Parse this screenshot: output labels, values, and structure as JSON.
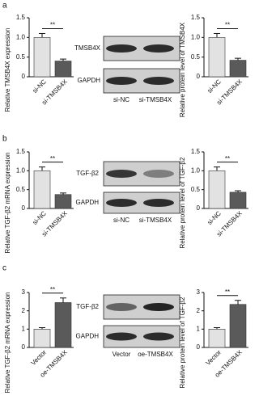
{
  "panels": [
    "a",
    "b",
    "c"
  ],
  "blots": [
    {
      "rows": [
        "TMSB4X",
        "GAPDH"
      ],
      "lanes": [
        "si-NC",
        "si-TMSB4X"
      ]
    },
    {
      "rows": [
        "TGF-β2",
        "GAPDH"
      ],
      "lanes": [
        "si-NC",
        "si-TMSB4X"
      ]
    },
    {
      "rows": [
        "TGF-β2",
        "GAPDH"
      ],
      "lanes": [
        "Vector",
        "oe-TMSB4X"
      ]
    }
  ],
  "chart_data": [
    {
      "type": "bar",
      "ylabel": "Relative TMSB4X expression",
      "categories": [
        "si-NC",
        "si-TMSB4X"
      ],
      "values": [
        1.0,
        0.4
      ],
      "errors": [
        0.1,
        0.05
      ],
      "colors": [
        "#e2e2e2",
        "#5a5a5a"
      ],
      "annotation": "**",
      "ylim": [
        0,
        1.5
      ],
      "yticks": [
        0,
        0.5,
        {
          "value": 1,
          "label": "1.0"
        },
        1.5
      ]
    },
    {
      "type": "bar",
      "ylabel": "Relative protein level of TMSB4X",
      "categories": [
        "si-NC",
        "si-TMSB4X"
      ],
      "values": [
        1.0,
        0.42
      ],
      "errors": [
        0.1,
        0.05
      ],
      "colors": [
        "#e2e2e2",
        "#5a5a5a"
      ],
      "annotation": "**",
      "ylim": [
        0,
        1.5
      ],
      "yticks": [
        0,
        0.5,
        {
          "value": 1,
          "label": "1.0"
        },
        1.5
      ]
    },
    {
      "type": "bar",
      "ylabel": "Relative TGF-β2 mRNA expression",
      "categories": [
        "si-NC",
        "si-TMSB4X"
      ],
      "values": [
        1.0,
        0.37
      ],
      "errors": [
        0.1,
        0.04
      ],
      "colors": [
        "#e2e2e2",
        "#5a5a5a"
      ],
      "annotation": "**",
      "ylim": [
        0,
        1.5
      ],
      "yticks": [
        0,
        0.5,
        {
          "value": 1,
          "label": "1.0"
        },
        1.5
      ]
    },
    {
      "type": "bar",
      "ylabel": "Relative protein level of TGF-β2",
      "categories": [
        "si-NC",
        "si-TMSB4X"
      ],
      "values": [
        1.0,
        0.43
      ],
      "errors": [
        0.1,
        0.04
      ],
      "colors": [
        "#e2e2e2",
        "#5a5a5a"
      ],
      "annotation": "**",
      "ylim": [
        0,
        1.5
      ],
      "yticks": [
        0,
        0.5,
        {
          "value": 1,
          "label": "1.0"
        },
        1.5
      ]
    },
    {
      "type": "bar",
      "ylabel": "Relative TGF-β2 mRNA expression",
      "categories": [
        "Vector",
        "oe-TMSB4X"
      ],
      "values": [
        1.0,
        2.45
      ],
      "errors": [
        0.08,
        0.25
      ],
      "colors": [
        "#e2e2e2",
        "#5a5a5a"
      ],
      "annotation": "**",
      "ylim": [
        0,
        3
      ],
      "yticks": [
        0,
        1,
        2,
        3
      ]
    },
    {
      "type": "bar",
      "ylabel": "Relative protein level of TGF-β2",
      "categories": [
        "Vector",
        "oe-TMSB4X"
      ],
      "values": [
        1.0,
        2.35
      ],
      "errors": [
        0.08,
        0.22
      ],
      "colors": [
        "#e2e2e2",
        "#5a5a5a"
      ],
      "annotation": "**",
      "ylim": [
        0,
        3
      ],
      "yticks": [
        0,
        1,
        2,
        3
      ]
    }
  ]
}
